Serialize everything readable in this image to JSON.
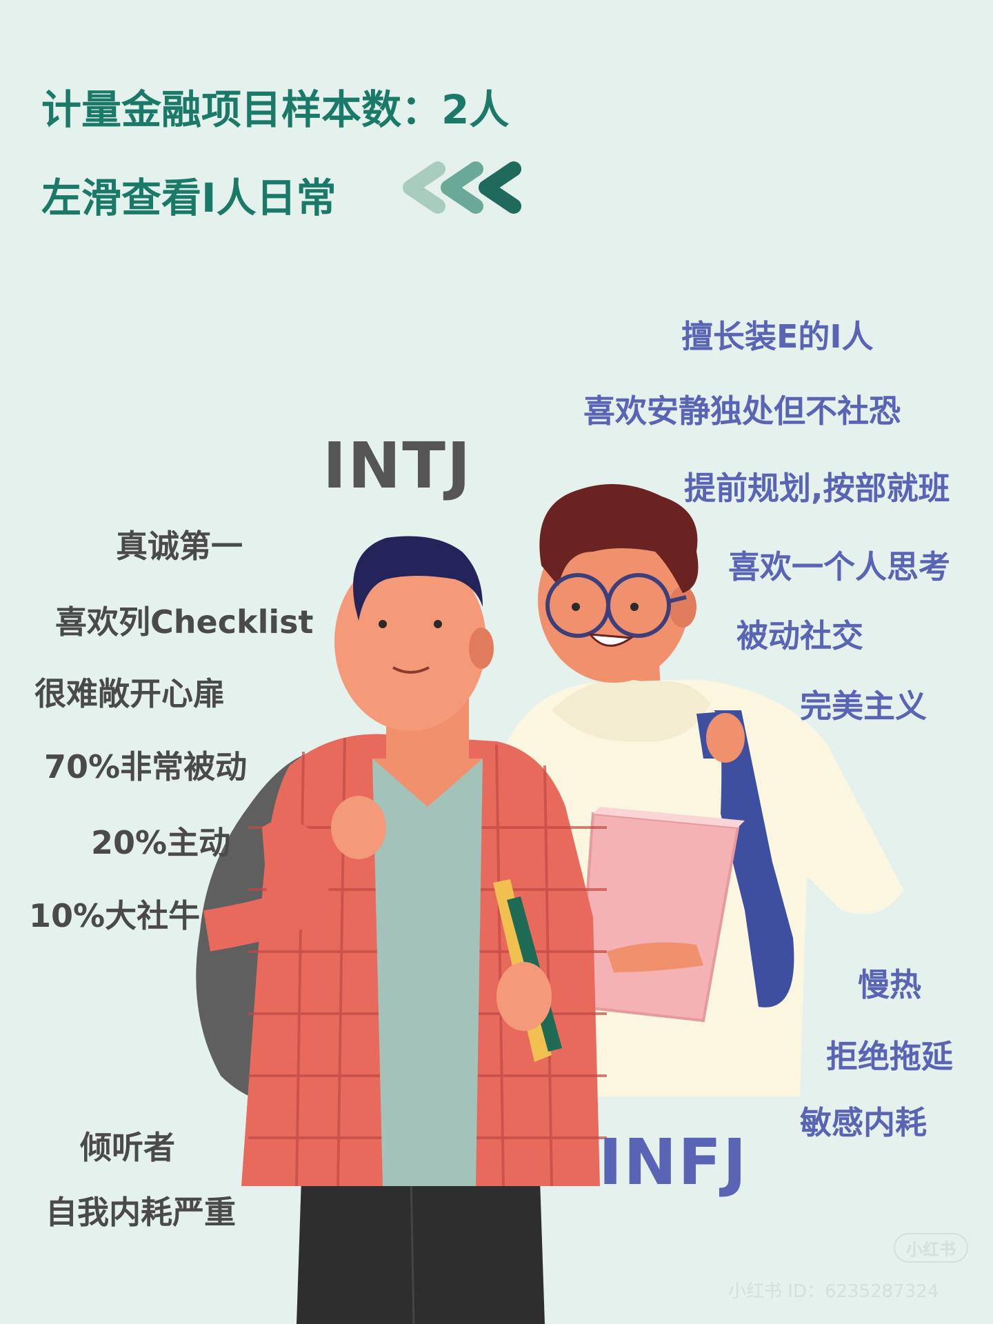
{
  "header": {
    "title": "计量金融项目样本数：2人",
    "subtitle": "左滑查看I人日常"
  },
  "intj": {
    "label": "INTJ",
    "traits": [
      "真诚第一",
      "喜欢列Checklist",
      "很难敞开心扉",
      "70%非常被动",
      "20%主动",
      "10%大社牛",
      "倾听者",
      "自我内耗严重"
    ]
  },
  "infj": {
    "label": "INFJ",
    "traits": [
      "擅长装E的I人",
      "喜欢安静独处但不社恐",
      "提前规划,按部就班",
      "喜欢一个人思考",
      "被动社交",
      "完美主义",
      "慢热",
      "拒绝拖延",
      "敏感内耗"
    ]
  },
  "watermark": {
    "badge": "小红书",
    "id_text": "小红书 ID：6235287324"
  },
  "icons": [
    "chevrons-left-icon",
    "student-intj-illustration",
    "student-infj-illustration"
  ],
  "colors": {
    "background": "#e4f1ec",
    "title": "#1a7a67",
    "intj_text": "#4a4a4a",
    "infj_text": "#5a64b4"
  }
}
